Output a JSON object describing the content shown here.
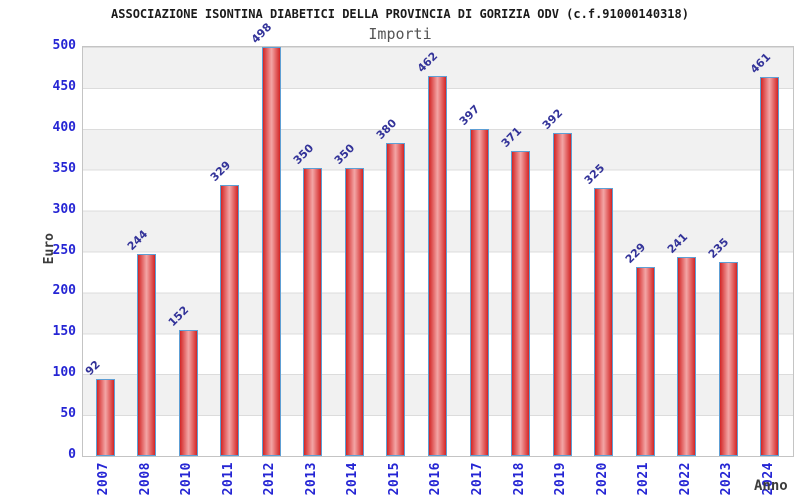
{
  "header": {
    "title": "ASSOCIAZIONE ISONTINA DIABETICI DELLA PROVINCIA DI GORIZIA ODV (c.f.91000140318)",
    "subtitle": "Importi"
  },
  "chart_data": {
    "type": "bar",
    "title": "ASSOCIAZIONE ISONTINA DIABETICI DELLA PROVINCIA DI GORIZIA ODV (c.f.91000140318)",
    "subtitle": "Importi",
    "xlabel": "Anno",
    "ylabel": "Euro",
    "categories": [
      "2007",
      "2008",
      "2010",
      "2011",
      "2012",
      "2013",
      "2014",
      "2015",
      "2016",
      "2017",
      "2018",
      "2019",
      "2020",
      "2021",
      "2022",
      "2023",
      "2024"
    ],
    "values": [
      92,
      244,
      152,
      329,
      498,
      350,
      350,
      380,
      462,
      397,
      371,
      392,
      325,
      229,
      241,
      235,
      461
    ],
    "ylim": [
      0,
      500
    ],
    "yticks": [
      0,
      50,
      100,
      150,
      200,
      250,
      300,
      350,
      400,
      450,
      500
    ],
    "grid": "horizontal-bands",
    "legend": "none",
    "bar_value_labels_rotation_deg": -45,
    "x_tick_labels_rotation_deg": -90,
    "colors": {
      "bar_edge": "#d32525",
      "bar_center": "#f3a6a6",
      "bar_border": "#5e9fd4",
      "tick_label": "#2525d4",
      "value_label": "#333399",
      "band_gray": "#f1f1f1",
      "gridline": "#dcdcdc",
      "title": "#1a1a1a",
      "subtitle": "#555555",
      "axis_title": "#3c3c3c"
    }
  }
}
